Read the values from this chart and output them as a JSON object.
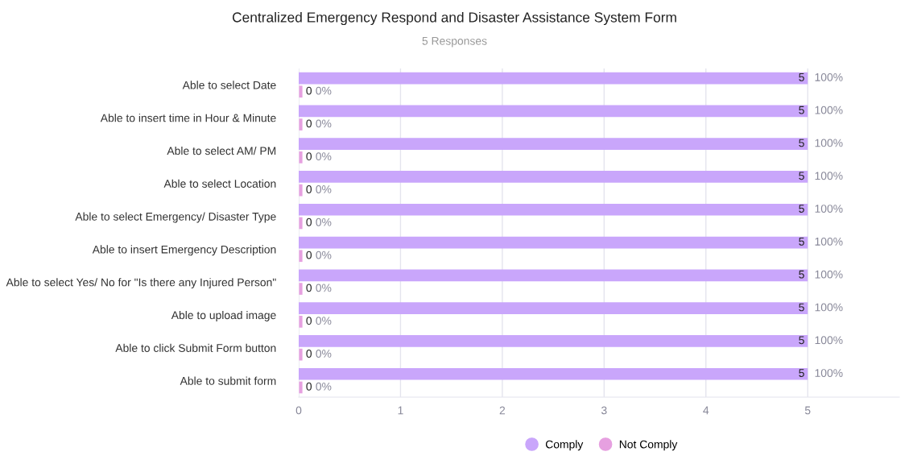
{
  "chart_data": {
    "type": "bar",
    "orientation": "horizontal",
    "title": "Centralized Emergency Respond and Disaster Assistance System Form",
    "subtitle": "5 Responses",
    "categories": [
      "Able to select Date",
      "Able to insert time in Hour & Minute",
      "Able to select AM/ PM",
      "Able to select Location",
      "Able to select Emergency/ Disaster Type",
      "Able to insert Emergency Description",
      "Able to select Yes/ No for \"Is there any Injured Person\"",
      "Able to upload image",
      "Able to click Submit Form button",
      "Able to submit form"
    ],
    "series": [
      {
        "name": "Comply",
        "color": "#c9a6fb",
        "values": [
          5,
          5,
          5,
          5,
          5,
          5,
          5,
          5,
          5,
          5
        ]
      },
      {
        "name": "Not Comply",
        "color": "#e6a0e0",
        "values": [
          0,
          0,
          0,
          0,
          0,
          0,
          0,
          0,
          0,
          0
        ]
      }
    ],
    "annotations": [
      "100%",
      "0%",
      "100%",
      "0%",
      "100%",
      "0%",
      "100%",
      "0%",
      "100%",
      "0%",
      "100%",
      "0%",
      "100%",
      "0%",
      "100%",
      "0%",
      "100%",
      "0%",
      "100%",
      "0%"
    ],
    "xlim": [
      0,
      5.9
    ],
    "xticks": [
      0,
      1,
      2,
      3,
      4,
      5
    ],
    "grid": "x",
    "legend": "bottom",
    "data_labels": true
  }
}
